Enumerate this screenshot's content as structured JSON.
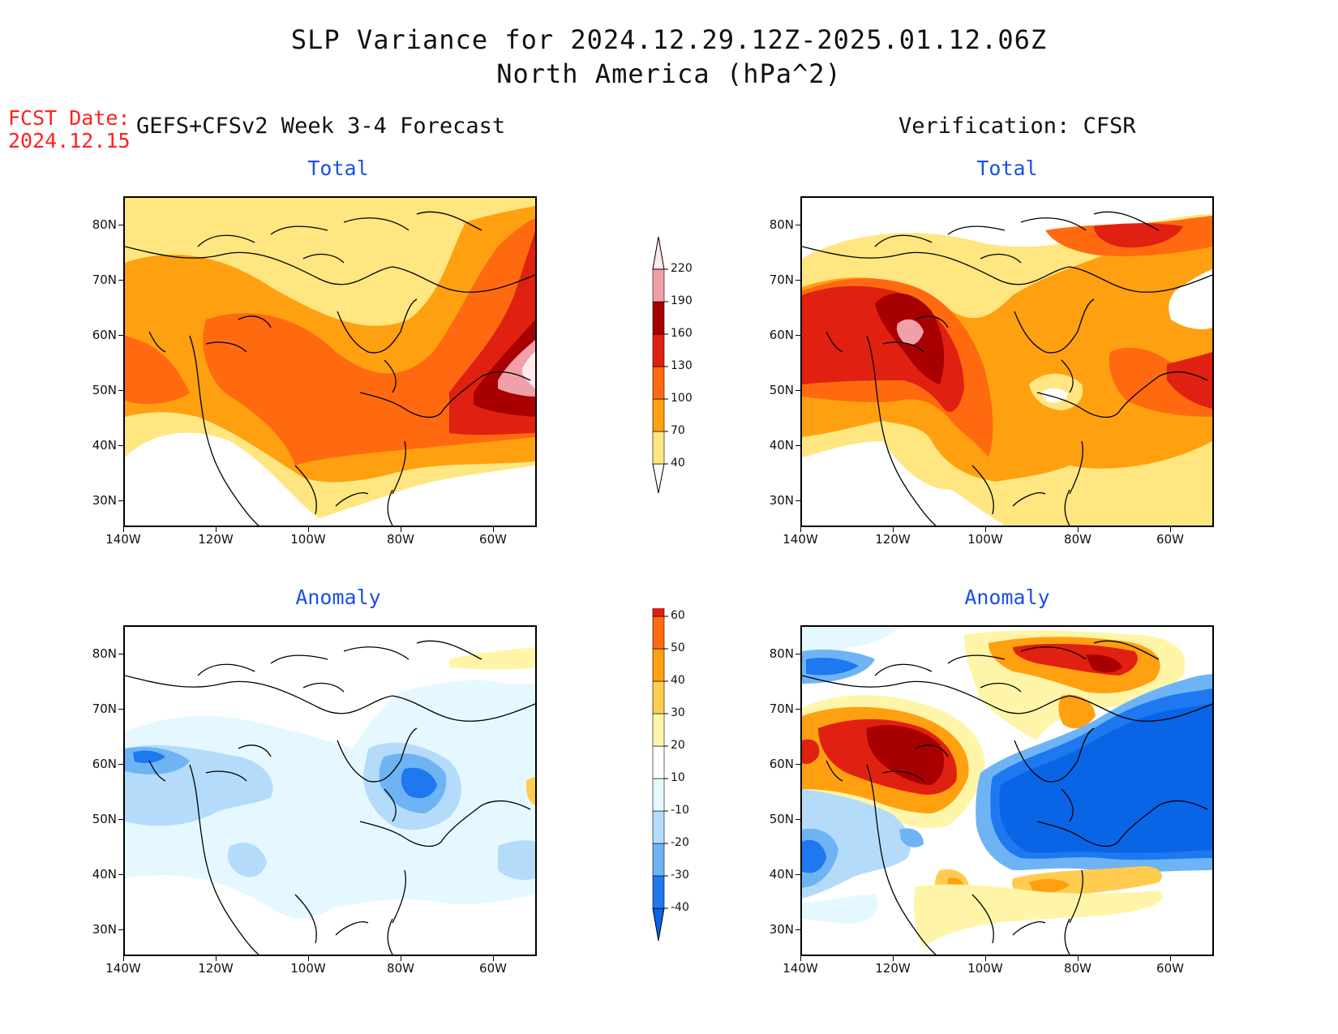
{
  "header": {
    "title_line1": "SLP Variance for 2024.12.29.12Z-2025.01.12.06Z",
    "title_line2": "North America (hPa^2)",
    "fcst_label": "FCST Date:",
    "fcst_date": "2024.12.15",
    "left_heading": "GEFS+CFSv2 Week 3-4 Forecast",
    "right_heading": "Verification: CFSR"
  },
  "panels": {
    "fc_total": {
      "title": "Total"
    },
    "ver_total": {
      "title": "Total"
    },
    "fc_anom": {
      "title": "Anomaly"
    },
    "ver_anom": {
      "title": "Anomaly"
    }
  },
  "axes": {
    "lat_labels": [
      "80N",
      "70N",
      "60N",
      "50N",
      "40N",
      "30N"
    ],
    "lon_labels": [
      "140W",
      "120W",
      "100W",
      "80W",
      "60W"
    ]
  },
  "colorbars": {
    "total": {
      "levels": [
        "40",
        "70",
        "100",
        "130",
        "160",
        "190",
        "220"
      ],
      "colors": [
        "#ffe680",
        "#ffa010",
        "#ff6a10",
        "#e02010",
        "#a80000",
        "#f0a0a8",
        "#ffe8ec"
      ]
    },
    "anomaly": {
      "levels": [
        "-40",
        "-30",
        "-20",
        "-10",
        "10",
        "20",
        "30",
        "40",
        "50",
        "60"
      ],
      "colors": [
        "#0a64e6",
        "#1e78f0",
        "#6eb4f5",
        "#b4dcfa",
        "#e6f8ff",
        "#ffffff",
        "#fff5a8",
        "#ffcc50",
        "#ffa010",
        "#ff6a10",
        "#e02010",
        "#a80000"
      ]
    }
  }
}
